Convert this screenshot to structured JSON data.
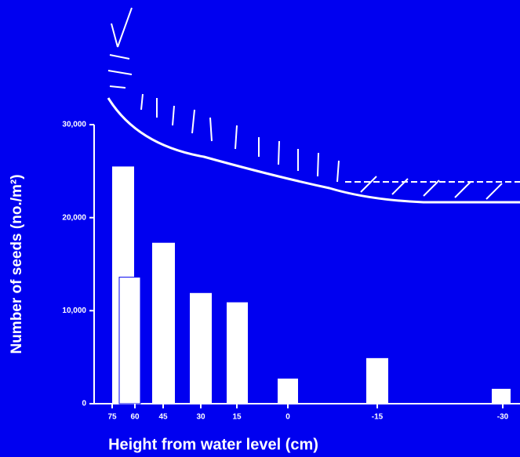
{
  "chart_data": {
    "type": "bar",
    "x_label": "Height from water level (cm)",
    "y_label": "Number of seeds (no./m²)",
    "categories": [
      "75",
      "60",
      "45",
      "30",
      "15",
      "0",
      "-15",
      "-30"
    ],
    "values": [
      25500,
      13600,
      17300,
      11900,
      10900,
      2700,
      4900,
      1600
    ],
    "color": "#ffffff",
    "ylim": [
      0,
      30000
    ],
    "yticks": [
      0,
      {
        "value": 10000,
        "label": "10,000"
      },
      {
        "value": 20000,
        "label": "20,000"
      },
      {
        "value": 30000,
        "label": "30,000"
      }
    ]
  }
}
